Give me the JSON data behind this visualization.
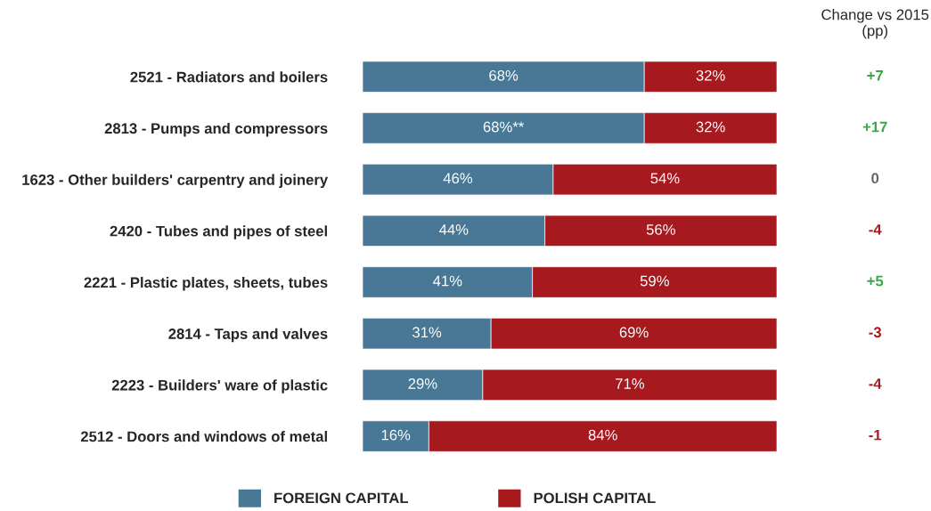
{
  "chart_data": {
    "type": "bar",
    "orientation": "horizontal",
    "stacked": true,
    "categories": [
      "2521 - Radiators and boilers",
      "2813 - Pumps and compressors",
      "1623 - Other builders' carpentry and joinery",
      "2420 - Tubes and pipes of steel",
      "2221 - Plastic plates, sheets, tubes",
      "2814 - Taps and valves",
      "2223 - Builders' ware of plastic",
      "2512 - Doors and windows of metal"
    ],
    "xlim": [
      0,
      100
    ],
    "series": [
      {
        "name": "FOREIGN CAPITAL",
        "color": "#487896",
        "values": [
          68,
          68,
          46,
          44,
          41,
          31,
          29,
          16
        ],
        "value_labels": [
          "68%",
          "68%**",
          "46%",
          "44%",
          "41%",
          "31%",
          "29%",
          "16%"
        ]
      },
      {
        "name": "POLISH CAPITAL",
        "color": "#a6191f",
        "values": [
          32,
          32,
          54,
          56,
          59,
          69,
          71,
          84
        ],
        "value_labels": [
          "32%",
          "32%",
          "54%",
          "56%",
          "59%",
          "69%",
          "71%",
          "84%"
        ]
      }
    ],
    "annotations": [
      "Change vs 2015\n(pp)",
      "+7",
      "+17",
      "0",
      "-4",
      "+5",
      "-3",
      "-4",
      "-1"
    ],
    "legend": "bottom"
  }
}
